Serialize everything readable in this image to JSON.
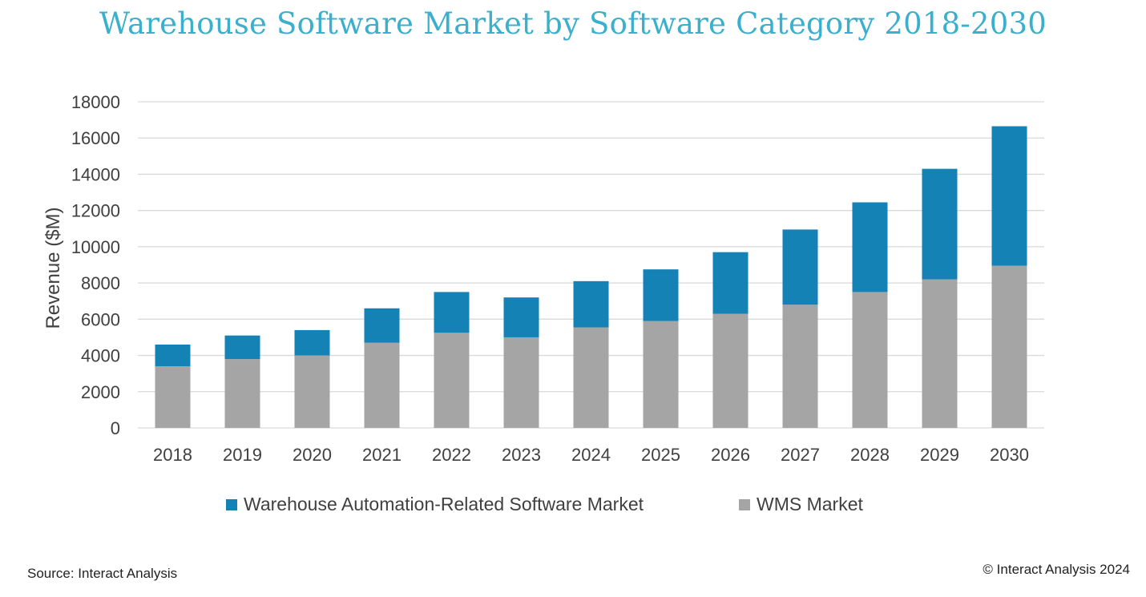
{
  "chart_data": {
    "type": "bar",
    "stacked": true,
    "title": "Warehouse Software Market by Software Category 2018-2030",
    "ylabel": "Revenue ($M)",
    "xlabel": "",
    "ylim": [
      0,
      18000
    ],
    "yticks": [
      0,
      2000,
      4000,
      6000,
      8000,
      10000,
      12000,
      14000,
      16000,
      18000
    ],
    "grid": true,
    "legend_position": "bottom",
    "categories": [
      "2018",
      "2019",
      "2020",
      "2021",
      "2022",
      "2023",
      "2024",
      "2025",
      "2026",
      "2027",
      "2028",
      "2029",
      "2030"
    ],
    "series": [
      {
        "name": "WMS Market",
        "color": "#a5a5a5",
        "values": [
          3400,
          3800,
          4000,
          4700,
          5250,
          5000,
          5550,
          5900,
          6300,
          6800,
          7500,
          8200,
          8950
        ]
      },
      {
        "name": "Warehouse Automation-Related Software Market",
        "color": "#1482b4",
        "values": [
          1200,
          1300,
          1400,
          1900,
          2250,
          2200,
          2550,
          2850,
          3400,
          4150,
          4950,
          6100,
          7700
        ]
      }
    ],
    "legend_order": [
      "Warehouse Automation-Related Software Market",
      "WMS Market"
    ]
  },
  "footer": {
    "source": "Source: Interact Analysis",
    "copyright": "© Interact Analysis 2024"
  },
  "colors": {
    "title": "#3ab0cd",
    "gridline": "#d9d9d9",
    "text": "#404040"
  }
}
